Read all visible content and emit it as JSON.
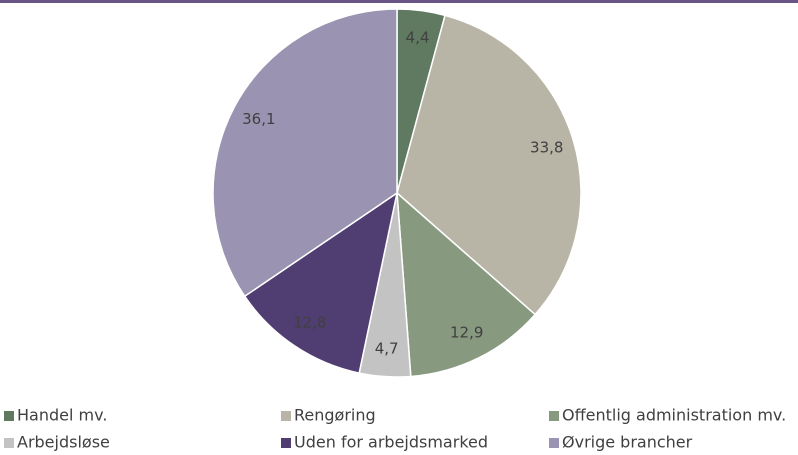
{
  "chart_data": {
    "type": "pie",
    "categories": [
      "Handel mv.",
      "Rengøring",
      "Offentlig administration mv.",
      "Arbejdsløse",
      "Uden for arbejdsmarked",
      "Øvrige brancher"
    ],
    "values": [
      4.4,
      33.8,
      12.9,
      4.7,
      12.8,
      36.1
    ],
    "value_labels": [
      "4,4",
      "33,8",
      "12,9",
      "4,7",
      "12,8",
      "36,1"
    ],
    "colors": [
      "#5f7a60",
      "#b8b5a7",
      "#879a80",
      "#c3c3c3",
      "#503d71",
      "#9a93b1"
    ],
    "legend": "bottom"
  }
}
